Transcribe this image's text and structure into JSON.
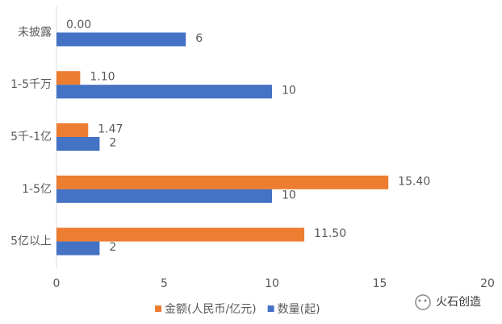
{
  "chart_data": {
    "type": "hbar",
    "categories": [
      "未披露",
      "1-5千万",
      "5千-1亿",
      "1-5亿",
      "5亿以上"
    ],
    "series": [
      {
        "name": "金额(人民币/亿元)",
        "color": "#ed7d31",
        "values": [
          0,
          1.1,
          1.47,
          15.4,
          11.5
        ],
        "value_labels": [
          "0.00",
          "1.10",
          "1.47",
          "15.40",
          "11.50"
        ]
      },
      {
        "name": "数量(起)",
        "color": "#4472c4",
        "values": [
          6,
          10,
          2,
          10,
          2
        ]
      }
    ],
    "xlim": [
      0,
      20
    ],
    "xticks": [
      0,
      5,
      10,
      15,
      20
    ],
    "grid": false,
    "legend": "bottom",
    "source": "火石创造"
  }
}
